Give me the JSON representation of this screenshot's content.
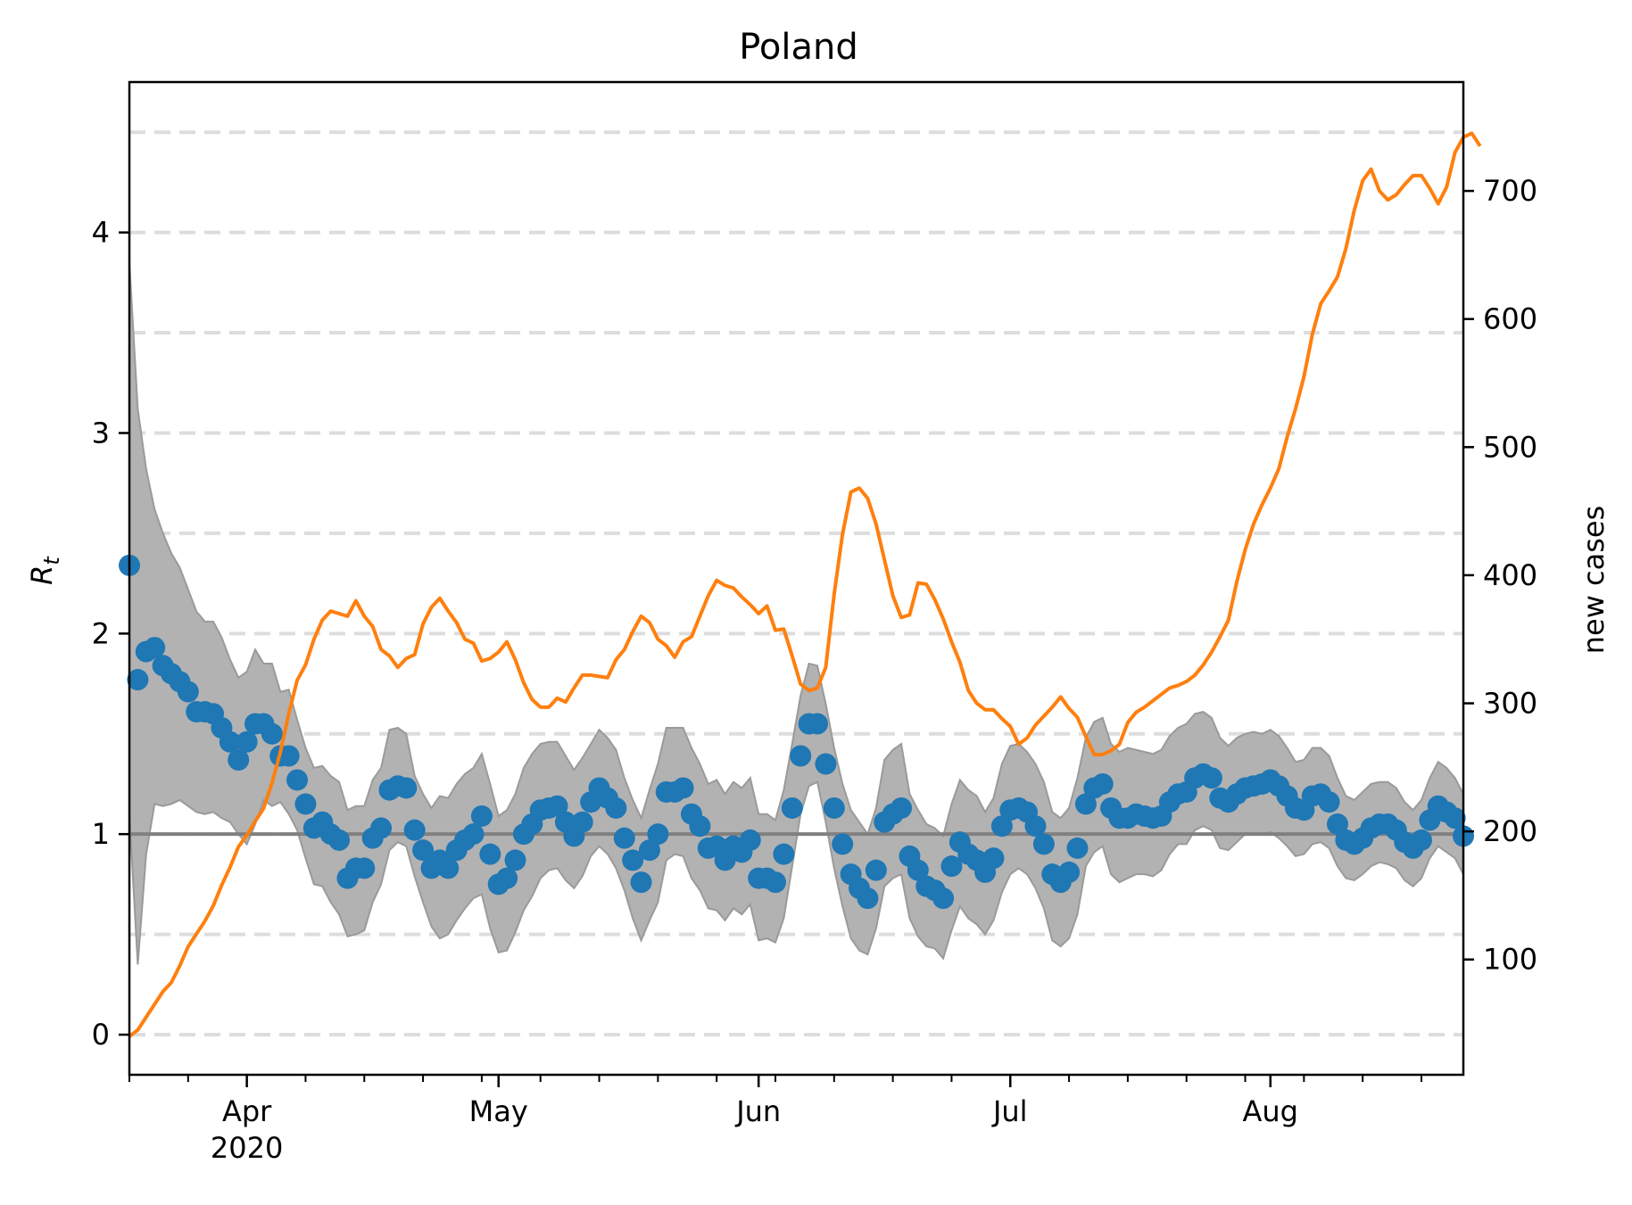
{
  "chart_data": {
    "type": "line",
    "title": "Poland",
    "ylabel_left": "R",
    "ylabel_left_subscript": "t",
    "ylabel_right": "new cases",
    "ylim_left": [
      -0.2,
      4.75
    ],
    "ylim_right": [
      10,
      785
    ],
    "xlim": [
      "2020-03-18",
      "2020-08-24"
    ],
    "grid": "horizontal dashed (left axis, every 0.5)",
    "reference_line": 1,
    "left_ticks": [
      "0",
      "1",
      "2",
      "3",
      "4"
    ],
    "right_ticks": [
      "100",
      "200",
      "300",
      "400",
      "500",
      "600",
      "700"
    ],
    "x_ticks": [
      {
        "date": "2020-04-01",
        "label": "Apr",
        "sublabel": "2020"
      },
      {
        "date": "2020-05-01",
        "label": "May",
        "sublabel": ""
      },
      {
        "date": "2020-06-01",
        "label": "Jun",
        "sublabel": ""
      },
      {
        "date": "2020-07-01",
        "label": "Jul",
        "sublabel": ""
      },
      {
        "date": "2020-08-01",
        "label": "Aug",
        "sublabel": ""
      }
    ],
    "colors": {
      "rt_points": "#1f77b4",
      "new_cases_line": "#ff7f0e",
      "ci_band": "#b2b2b2",
      "reference": "#808080",
      "grid": "#dddddd"
    },
    "series": [
      {
        "kind": "rt",
        "values": [
          2.34,
          1.77,
          1.91,
          1.93,
          1.84,
          1.8,
          1.76,
          1.71,
          1.61,
          1.61,
          1.6,
          1.53,
          1.46,
          1.37,
          1.46,
          1.55,
          1.55,
          1.5,
          1.39,
          1.39,
          1.27,
          1.15,
          1.03,
          1.06,
          1.0,
          0.97,
          0.78,
          0.83,
          0.83,
          0.98,
          1.03,
          1.22,
          1.24,
          1.23,
          1.02,
          0.92,
          0.83,
          0.87,
          0.83,
          0.92,
          0.97,
          1.0,
          1.09,
          0.9,
          0.75,
          0.78,
          0.87,
          1.0,
          1.05,
          1.12,
          1.13,
          1.14,
          1.06,
          0.99,
          1.06,
          1.16,
          1.23,
          1.18,
          1.13,
          0.98,
          0.87,
          0.76,
          0.92,
          1.0,
          1.21,
          1.21,
          1.23,
          1.1,
          1.04,
          0.93,
          0.94,
          0.87,
          0.94,
          0.91,
          0.97,
          0.78,
          0.78,
          0.76,
          0.9,
          1.13,
          1.39,
          1.55,
          1.55,
          1.35,
          1.13,
          0.95,
          0.8,
          0.73,
          0.68,
          0.82,
          1.06,
          1.1,
          1.13,
          0.89,
          0.82,
          0.74,
          0.72,
          0.68,
          0.84,
          0.96,
          0.9,
          0.87,
          0.81,
          0.88,
          1.04,
          1.12,
          1.13,
          1.11,
          1.04,
          0.95,
          0.8,
          0.76,
          0.81,
          0.93,
          1.15,
          1.23,
          1.25,
          1.13,
          1.08,
          1.08,
          1.1,
          1.09,
          1.08,
          1.09,
          1.16,
          1.2,
          1.21,
          1.28,
          1.3,
          1.28,
          1.18,
          1.16,
          1.2,
          1.23,
          1.24,
          1.25,
          1.27,
          1.24,
          1.19,
          1.13,
          1.12,
          1.19,
          1.2,
          1.16,
          1.05,
          0.97,
          0.95,
          0.98,
          1.03,
          1.05,
          1.05,
          1.02,
          0.96,
          0.93,
          0.97,
          1.07,
          1.14,
          1.11,
          1.08,
          0.99
        ],
        "lower": [
          1.1,
          0.35,
          0.9,
          1.15,
          1.14,
          1.15,
          1.17,
          1.14,
          1.11,
          1.1,
          1.11,
          1.08,
          1.06,
          1.0,
          0.95,
          1.05,
          1.17,
          1.14,
          1.16,
          1.1,
          1.02,
          0.88,
          0.75,
          0.74,
          0.66,
          0.6,
          0.49,
          0.5,
          0.52,
          0.66,
          0.75,
          0.92,
          0.96,
          0.94,
          0.79,
          0.66,
          0.54,
          0.48,
          0.5,
          0.57,
          0.63,
          0.68,
          0.7,
          0.53,
          0.41,
          0.42,
          0.51,
          0.62,
          0.69,
          0.78,
          0.82,
          0.83,
          0.77,
          0.73,
          0.79,
          0.89,
          0.94,
          0.9,
          0.83,
          0.72,
          0.58,
          0.47,
          0.57,
          0.66,
          0.87,
          0.9,
          0.89,
          0.78,
          0.72,
          0.63,
          0.62,
          0.57,
          0.63,
          0.6,
          0.65,
          0.47,
          0.48,
          0.46,
          0.58,
          0.84,
          1.1,
          1.24,
          1.26,
          1.06,
          0.83,
          0.64,
          0.48,
          0.42,
          0.4,
          0.53,
          0.74,
          0.78,
          0.8,
          0.58,
          0.49,
          0.44,
          0.43,
          0.38,
          0.52,
          0.64,
          0.58,
          0.55,
          0.5,
          0.57,
          0.71,
          0.8,
          0.83,
          0.8,
          0.73,
          0.63,
          0.47,
          0.44,
          0.48,
          0.6,
          0.84,
          0.91,
          0.94,
          0.8,
          0.76,
          0.78,
          0.8,
          0.8,
          0.79,
          0.82,
          0.9,
          0.95,
          0.95,
          1.02,
          1.04,
          1.02,
          0.93,
          0.92,
          0.96,
          1.0,
          1.0,
          1.0,
          1.01,
          0.98,
          0.94,
          0.89,
          0.9,
          0.95,
          0.96,
          0.93,
          0.84,
          0.78,
          0.77,
          0.8,
          0.84,
          0.86,
          0.85,
          0.83,
          0.77,
          0.74,
          0.78,
          0.88,
          0.94,
          0.91,
          0.88,
          0.8
        ],
        "upper": [
          3.85,
          3.12,
          2.82,
          2.62,
          2.5,
          2.4,
          2.33,
          2.22,
          2.11,
          2.06,
          2.06,
          1.98,
          1.87,
          1.78,
          1.81,
          1.92,
          1.85,
          1.85,
          1.71,
          1.72,
          1.57,
          1.43,
          1.33,
          1.34,
          1.29,
          1.26,
          1.12,
          1.14,
          1.14,
          1.27,
          1.33,
          1.52,
          1.53,
          1.5,
          1.29,
          1.2,
          1.13,
          1.19,
          1.18,
          1.25,
          1.3,
          1.33,
          1.4,
          1.25,
          1.09,
          1.12,
          1.2,
          1.33,
          1.4,
          1.45,
          1.46,
          1.46,
          1.39,
          1.32,
          1.38,
          1.45,
          1.52,
          1.48,
          1.42,
          1.28,
          1.17,
          1.08,
          1.22,
          1.35,
          1.53,
          1.53,
          1.53,
          1.43,
          1.35,
          1.25,
          1.27,
          1.2,
          1.26,
          1.23,
          1.28,
          1.1,
          1.1,
          1.07,
          1.22,
          1.45,
          1.69,
          1.85,
          1.84,
          1.65,
          1.43,
          1.25,
          1.12,
          1.06,
          1.0,
          1.13,
          1.37,
          1.42,
          1.45,
          1.2,
          1.12,
          1.05,
          1.03,
          0.99,
          1.15,
          1.27,
          1.22,
          1.19,
          1.11,
          1.18,
          1.35,
          1.44,
          1.45,
          1.41,
          1.35,
          1.26,
          1.11,
          1.08,
          1.13,
          1.28,
          1.48,
          1.56,
          1.58,
          1.45,
          1.41,
          1.43,
          1.42,
          1.41,
          1.4,
          1.42,
          1.49,
          1.53,
          1.55,
          1.6,
          1.61,
          1.58,
          1.48,
          1.44,
          1.48,
          1.5,
          1.51,
          1.5,
          1.52,
          1.49,
          1.43,
          1.36,
          1.37,
          1.43,
          1.43,
          1.39,
          1.28,
          1.19,
          1.17,
          1.21,
          1.25,
          1.26,
          1.26,
          1.23,
          1.16,
          1.12,
          1.17,
          1.28,
          1.36,
          1.33,
          1.28,
          1.2
        ]
      },
      {
        "kind": "new_cases",
        "values": [
          40,
          45,
          55,
          65,
          75,
          82,
          95,
          110,
          120,
          130,
          142,
          158,
          172,
          188,
          197,
          208,
          218,
          238,
          262,
          292,
          318,
          330,
          350,
          365,
          372,
          370,
          368,
          380,
          368,
          360,
          342,
          337,
          328,
          335,
          338,
          362,
          375,
          382,
          372,
          363,
          350,
          347,
          333,
          335,
          340,
          348,
          334,
          316,
          303,
          297,
          297,
          304,
          301,
          312,
          322,
          322,
          321,
          320,
          334,
          342,
          356,
          368,
          363,
          350,
          345,
          336,
          348,
          352,
          368,
          384,
          396,
          392,
          390,
          383,
          377,
          370,
          376,
          357,
          358,
          337,
          315,
          310,
          312,
          328,
          385,
          432,
          465,
          468,
          460,
          440,
          412,
          384,
          367,
          369,
          394,
          393,
          381,
          366,
          348,
          332,
          310,
          300,
          295,
          295,
          288,
          282,
          268,
          273,
          283,
          290,
          297,
          305,
          296,
          289,
          274,
          260,
          260,
          263,
          268,
          285,
          293,
          297,
          302,
          307,
          312,
          314,
          317,
          322,
          330,
          340,
          352,
          365,
          395,
          420,
          440,
          455,
          468,
          483,
          508,
          530,
          555,
          588,
          612,
          622,
          633,
          655,
          685,
          708,
          717,
          700,
          693,
          697,
          705,
          712,
          712,
          702,
          690,
          703,
          730,
          742,
          745,
          735
        ]
      }
    ]
  }
}
